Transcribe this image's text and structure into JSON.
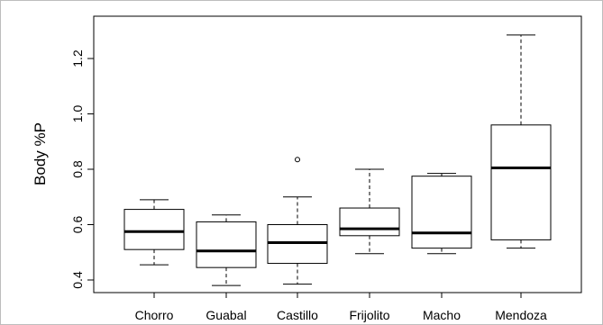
{
  "chart_data": {
    "type": "boxplot",
    "title": "",
    "xlabel": "",
    "ylabel": "Body %P",
    "ylim": [
      0.35,
      1.32
    ],
    "yticks": [
      0.4,
      0.6,
      0.8,
      1.0,
      1.2
    ],
    "ytick_labels": [
      "0.4",
      "0.6",
      "0.8",
      "1.0",
      "1.2"
    ],
    "grid": false,
    "categories": [
      "Chorro",
      "Guabal",
      "Castillo",
      "Frijolito",
      "Macho",
      "Mendoza"
    ],
    "boxes": [
      {
        "whisker_low": 0.455,
        "q1": 0.51,
        "median": 0.575,
        "q3": 0.655,
        "whisker_high": 0.69,
        "outliers": []
      },
      {
        "whisker_low": 0.38,
        "q1": 0.445,
        "median": 0.505,
        "q3": 0.61,
        "whisker_high": 0.635,
        "outliers": []
      },
      {
        "whisker_low": 0.385,
        "q1": 0.46,
        "median": 0.535,
        "q3": 0.6,
        "whisker_high": 0.7,
        "outliers": [
          0.835
        ]
      },
      {
        "whisker_low": 0.495,
        "q1": 0.56,
        "median": 0.585,
        "q3": 0.66,
        "whisker_high": 0.8,
        "outliers": []
      },
      {
        "whisker_low": 0.495,
        "q1": 0.515,
        "median": 0.57,
        "q3": 0.775,
        "whisker_high": 0.785,
        "outliers": []
      },
      {
        "whisker_low": 0.515,
        "q1": 0.545,
        "median": 0.805,
        "q3": 0.96,
        "whisker_high": 1.285,
        "outliers": []
      }
    ]
  }
}
